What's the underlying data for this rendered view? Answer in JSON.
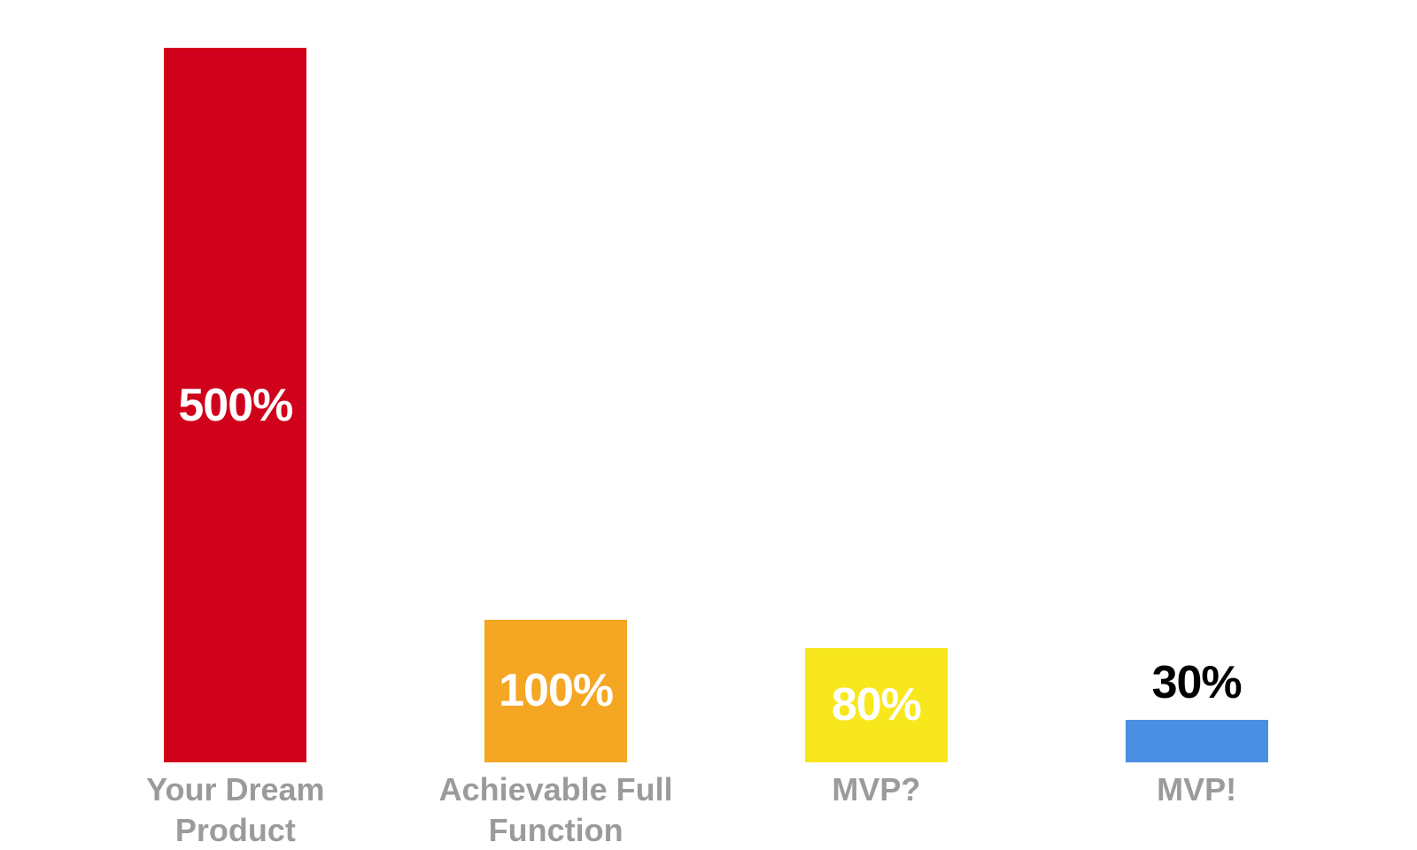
{
  "chart_data": {
    "type": "bar",
    "categories": [
      "Your Dream Product",
      "Achievable Full Function",
      "MVP?",
      "MVP!"
    ],
    "values": [
      500,
      100,
      80,
      30
    ],
    "value_labels": [
      "500%",
      "100%",
      "80%",
      "30%"
    ],
    "colors": [
      "#d0021b",
      "#f5a623",
      "#f8e71c",
      "#4a90e2"
    ]
  }
}
